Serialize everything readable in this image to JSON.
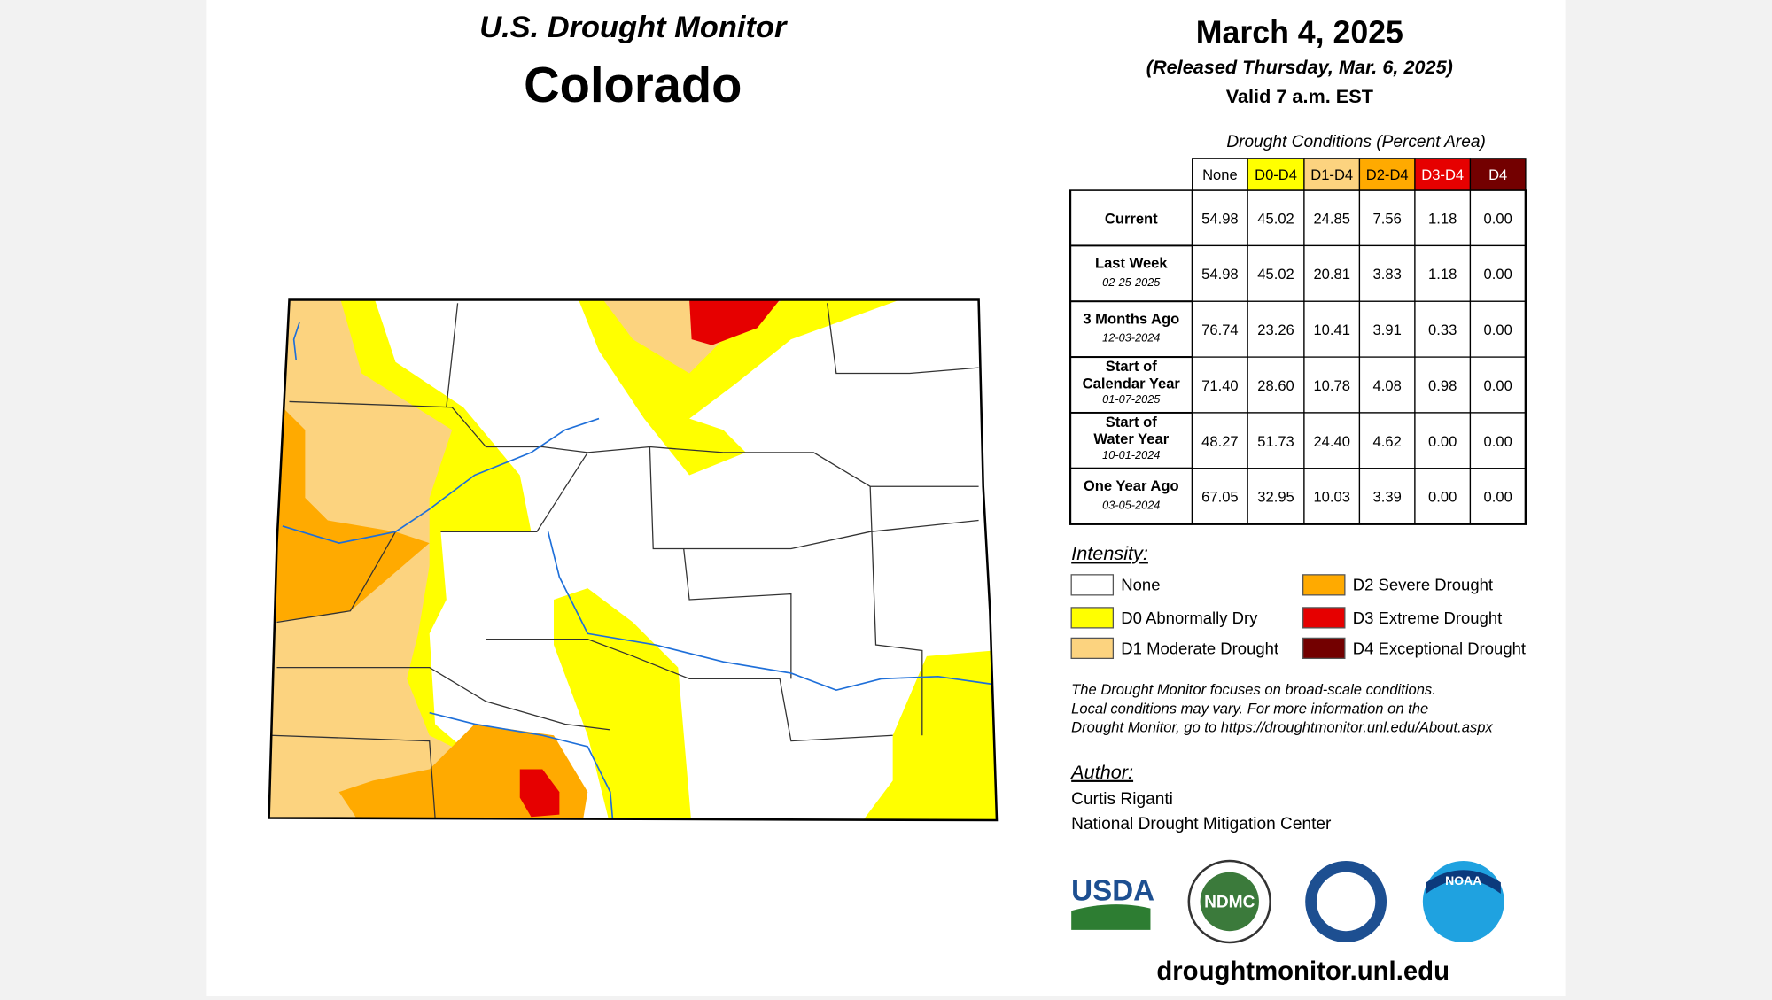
{
  "header": {
    "title": "U.S. Drought Monitor",
    "state": "Colorado",
    "date": "March 4, 2025",
    "released": "(Released Thursday, Mar. 6, 2025)",
    "valid": "Valid 7 a.m. EST"
  },
  "table": {
    "caption": "Drought Conditions (Percent Area)",
    "columns": [
      "None",
      "D0-D4",
      "D1-D4",
      "D2-D4",
      "D3-D4",
      "D4"
    ],
    "rows": [
      {
        "label": "Current",
        "values": [
          "54.98",
          "45.02",
          "24.85",
          "7.56",
          "1.18",
          "0.00"
        ]
      },
      {
        "label": "Last Week",
        "date": "02-25-2025",
        "values": [
          "54.98",
          "45.02",
          "20.81",
          "3.83",
          "1.18",
          "0.00"
        ]
      },
      {
        "label": "3 Months Ago",
        "date": "12-03-2024",
        "values": [
          "76.74",
          "23.26",
          "10.41",
          "3.91",
          "0.33",
          "0.00"
        ]
      },
      {
        "label": "Start of Calendar Year",
        "date": "01-07-2025",
        "values": [
          "71.40",
          "28.60",
          "10.78",
          "4.08",
          "0.98",
          "0.00"
        ]
      },
      {
        "label": "Start of Water Year",
        "date": "10-01-2024",
        "values": [
          "48.27",
          "51.73",
          "24.40",
          "4.62",
          "0.00",
          "0.00"
        ]
      },
      {
        "label": "One Year Ago",
        "date": "03-05-2024",
        "values": [
          "67.05",
          "32.95",
          "10.03",
          "3.39",
          "0.00",
          "0.00"
        ]
      }
    ]
  },
  "legend": {
    "title": "Intensity:",
    "items": [
      "None",
      "D0 Abnormally Dry",
      "D1 Moderate Drought",
      "D2 Severe Drought",
      "D3 Extreme Drought",
      "D4 Exceptional Drought"
    ]
  },
  "disclaimer": [
    "The Drought Monitor focuses on broad-scale conditions.",
    "Local conditions may vary. For more information on the",
    "Drought Monitor, go to https://droughtmonitor.unl.edu/About.aspx"
  ],
  "author": {
    "label": "Author:",
    "name": "Curtis Riganti",
    "org": "National Drought Mitigation Center"
  },
  "logos": [
    "USDA",
    "NDMC",
    "NOAA"
  ],
  "url": "droughtmonitor.unl.edu"
}
